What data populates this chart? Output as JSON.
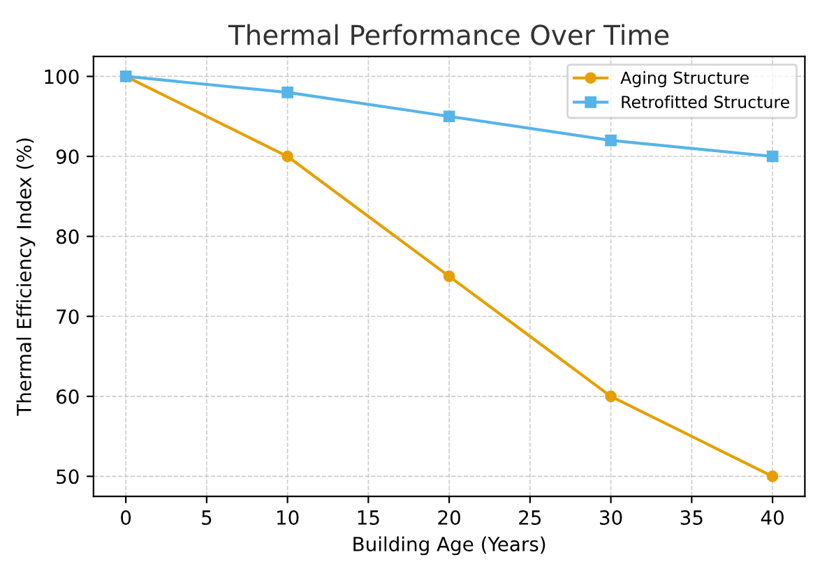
{
  "chart_data": {
    "type": "line",
    "title": "Thermal Performance Over Time",
    "xlabel": "Building Age (Years)",
    "ylabel": "Thermal Efficiency Index (%)",
    "x": [
      0,
      10,
      20,
      30,
      40
    ],
    "series": [
      {
        "name": "Aging Structure",
        "color": "#e69f00",
        "marker": "circle",
        "values": [
          100,
          90,
          75,
          60,
          50
        ]
      },
      {
        "name": "Retrofitted Structure",
        "color": "#56b4e9",
        "marker": "square",
        "values": [
          100,
          98,
          95,
          92,
          90
        ]
      }
    ],
    "xlim": [
      -2,
      42
    ],
    "xticks": [
      0,
      5,
      10,
      15,
      20,
      25,
      30,
      35,
      40
    ],
    "ylim": [
      47.5,
      102.5
    ],
    "yticks": [
      50,
      60,
      70,
      80,
      90,
      100
    ],
    "grid": true,
    "legend": "top right",
    "line_style": "solid"
  }
}
